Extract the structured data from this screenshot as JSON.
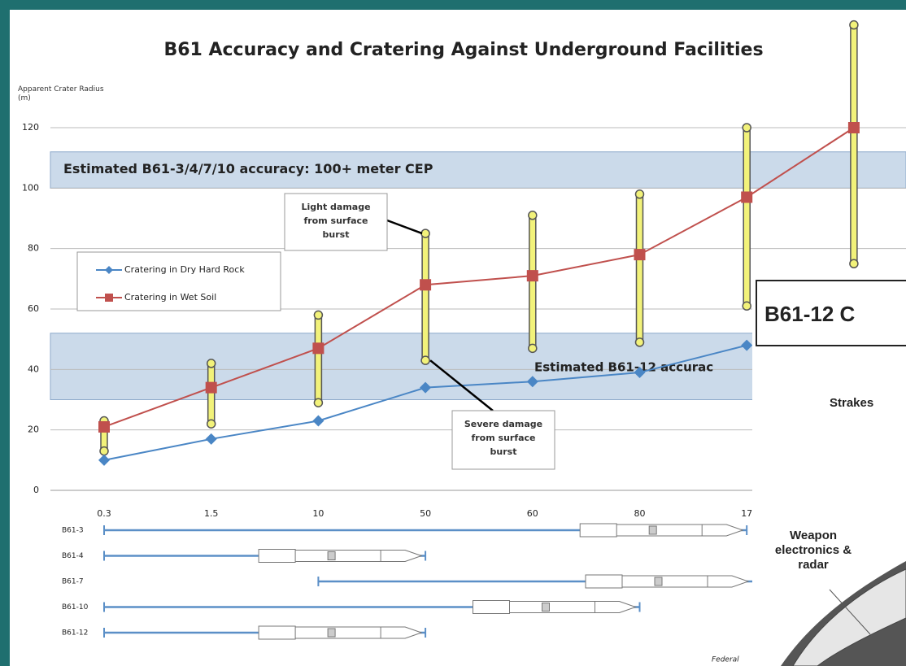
{
  "chart_data": {
    "type": "line",
    "title": "B61 Accuracy and Cratering Against Underground Facilities",
    "y_label": "Apparent Crater Radius (m)",
    "categories": [
      "0.3",
      "1.5",
      "10",
      "50",
      "60",
      "80",
      "17",
      null
    ],
    "series": [
      {
        "name": "Cratering in Dry Hard Rock",
        "color": "#4a86c5",
        "marker": "diamond",
        "values": [
          10,
          17,
          23,
          34,
          36,
          39,
          48,
          null
        ]
      },
      {
        "name": "Cratering in Wet Soil",
        "color": "#c0504d",
        "marker": "square",
        "values": [
          21,
          34,
          47,
          68,
          71,
          78,
          97,
          120
        ]
      }
    ],
    "ranges": {
      "color": "#f2f27a",
      "low": [
        13,
        22,
        29,
        43,
        47,
        49,
        61,
        75
      ],
      "high": [
        23,
        42,
        58,
        85,
        91,
        98,
        120,
        154
      ]
    },
    "bands": [
      {
        "label": "Estimated B61-3/4/7/10 accuracy: 100+ meter CEP",
        "from": 100,
        "to": 112
      },
      {
        "label": "Estimated B61-12 accurac",
        "from": 30,
        "to": 52
      }
    ],
    "annotations": [
      {
        "text": "Light damage from surface burst",
        "x": 3,
        "y": 85
      },
      {
        "text": "Severe damage from surface burst",
        "x": 3,
        "y": 43
      }
    ],
    "ylim": [
      0,
      120
    ],
    "yticks": [
      0,
      20,
      40,
      60,
      80,
      100,
      120
    ],
    "grid": true,
    "weapons": [
      {
        "name": "B61-3",
        "from": 0,
        "to": 6
      },
      {
        "name": "B61-4",
        "from": 0,
        "to": 3
      },
      {
        "name": "B61-7",
        "from": 2,
        "to": 6
      },
      {
        "name": "B61-10",
        "from": 0,
        "to": 5
      },
      {
        "name": "B61-12",
        "from": 0,
        "to": 3
      }
    ],
    "footnote": "Federal"
  },
  "inset": {
    "title": "B61-12 C",
    "labels": [
      "Strakes",
      "Weapon electronics & radar"
    ]
  }
}
